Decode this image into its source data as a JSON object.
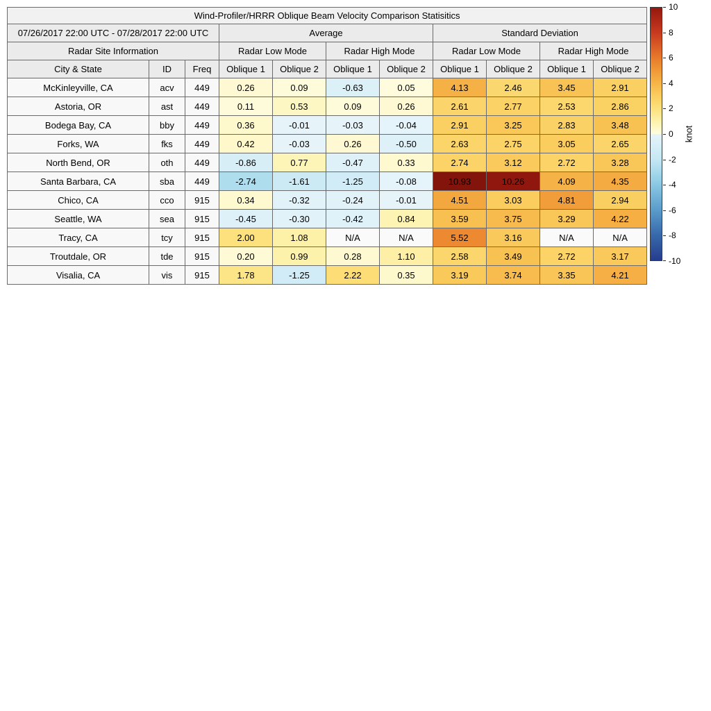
{
  "chart_data": {
    "type": "heatmap",
    "title": "Wind-Profiler/HRRR Oblique Beam Velocity Comparison Statisitics",
    "date_range": "07/26/2017 22:00 UTC - 07/28/2017 22:00 UTC",
    "site_info_label": "Radar Site Information",
    "column_groups": [
      "Average",
      "Standard Deviation"
    ],
    "mode_groups": [
      "Radar Low Mode",
      "Radar High Mode"
    ],
    "value_columns": [
      "Oblique 1",
      "Oblique 2"
    ],
    "site_columns": [
      "City & State",
      "ID",
      "Freq"
    ],
    "na_label": "N/A",
    "colorbar": {
      "label": "knot",
      "min": -10,
      "max": 10,
      "ticks": [
        10,
        8,
        6,
        4,
        2,
        0,
        -2,
        -4,
        -6,
        -8,
        -10
      ]
    },
    "colormap": {
      "na_color": "#fafafa",
      "positive": [
        [
          0,
          [
            254,
            252,
            224
          ]
        ],
        [
          1,
          [
            253,
            242,
            171
          ]
        ],
        [
          2,
          [
            252,
            225,
            125
          ]
        ],
        [
          3,
          [
            250,
            206,
            95
          ]
        ],
        [
          4,
          [
            246,
            181,
            71
          ]
        ],
        [
          5,
          [
            240,
            153,
            55
          ]
        ],
        [
          6,
          [
            232,
            123,
            43
          ]
        ],
        [
          8,
          [
            200,
            58,
            31
          ]
        ],
        [
          10,
          [
            148,
            24,
            14
          ]
        ],
        [
          12,
          [
            110,
            16,
            9
          ]
        ]
      ],
      "negative_abs": [
        [
          0,
          [
            230,
            244,
            250
          ]
        ],
        [
          2,
          [
            197,
            231,
            243
          ]
        ],
        [
          3,
          [
            166,
            217,
            236
          ]
        ],
        [
          4,
          [
            139,
            200,
            228
          ]
        ],
        [
          6,
          [
            90,
            156,
            203
          ]
        ],
        [
          8,
          [
            55,
            105,
            170
          ]
        ],
        [
          10,
          [
            38,
            60,
            142
          ]
        ],
        [
          12,
          [
            30,
            45,
            110
          ]
        ]
      ]
    },
    "rows": [
      {
        "city": "McKinleyville, CA",
        "id": "acv",
        "freq": 449,
        "avg": [
          0.26,
          0.09,
          -0.63,
          0.05
        ],
        "std": [
          4.13,
          2.46,
          3.45,
          2.91
        ]
      },
      {
        "city": "Astoria, OR",
        "id": "ast",
        "freq": 449,
        "avg": [
          0.11,
          0.53,
          0.09,
          0.26
        ],
        "std": [
          2.61,
          2.77,
          2.53,
          2.86
        ]
      },
      {
        "city": "Bodega Bay, CA",
        "id": "bby",
        "freq": 449,
        "avg": [
          0.36,
          -0.01,
          -0.03,
          -0.04
        ],
        "std": [
          2.91,
          3.25,
          2.83,
          3.48
        ]
      },
      {
        "city": "Forks, WA",
        "id": "fks",
        "freq": 449,
        "avg": [
          0.42,
          -0.03,
          0.26,
          -0.5
        ],
        "std": [
          2.63,
          2.75,
          3.05,
          2.65
        ]
      },
      {
        "city": "North Bend, OR",
        "id": "oth",
        "freq": 449,
        "avg": [
          -0.86,
          0.77,
          -0.47,
          0.33
        ],
        "std": [
          2.74,
          3.12,
          2.72,
          3.28
        ]
      },
      {
        "city": "Santa Barbara, CA",
        "id": "sba",
        "freq": 449,
        "avg": [
          -2.74,
          -1.61,
          -1.25,
          -0.08
        ],
        "std": [
          10.93,
          10.26,
          4.09,
          4.35
        ]
      },
      {
        "city": "Chico, CA",
        "id": "cco",
        "freq": 915,
        "avg": [
          0.34,
          -0.32,
          -0.24,
          -0.01
        ],
        "std": [
          4.51,
          3.03,
          4.81,
          2.94
        ]
      },
      {
        "city": "Seattle, WA",
        "id": "sea",
        "freq": 915,
        "avg": [
          -0.45,
          -0.3,
          -0.42,
          0.84
        ],
        "std": [
          3.59,
          3.75,
          3.29,
          4.22
        ]
      },
      {
        "city": "Tracy, CA",
        "id": "tcy",
        "freq": 915,
        "avg": [
          2.0,
          1.08,
          "N/A",
          "N/A"
        ],
        "std": [
          5.52,
          3.16,
          "N/A",
          "N/A"
        ]
      },
      {
        "city": "Troutdale, OR",
        "id": "tde",
        "freq": 915,
        "avg": [
          0.2,
          0.99,
          0.28,
          1.1
        ],
        "std": [
          2.58,
          3.49,
          2.72,
          3.17
        ]
      },
      {
        "city": "Visalia, CA",
        "id": "vis",
        "freq": 915,
        "avg": [
          1.78,
          -1.25,
          2.22,
          0.35
        ],
        "std": [
          3.19,
          3.74,
          3.35,
          4.21
        ]
      }
    ]
  }
}
